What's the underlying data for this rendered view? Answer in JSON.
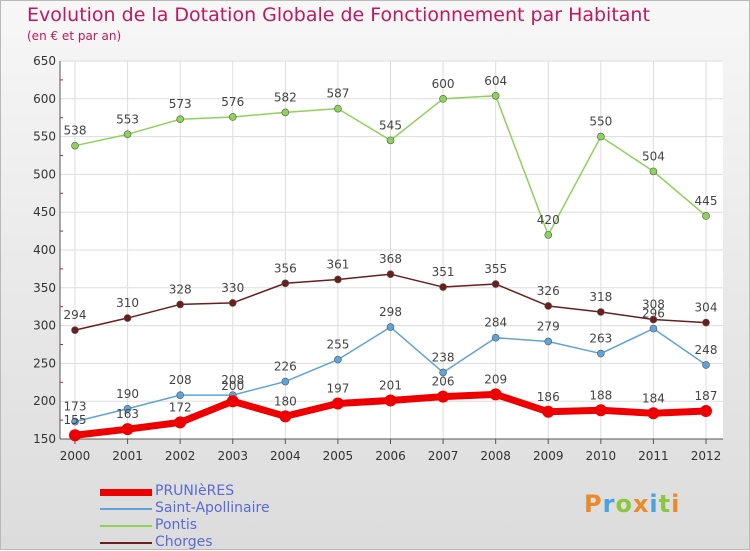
{
  "header": {
    "title": "Evolution de la Dotation Globale de Fonctionnement par Habitant",
    "subtitle": "(en € et par an)"
  },
  "logo": {
    "text": "Proxiti",
    "letters": [
      "P",
      "r",
      "o",
      "x",
      "i",
      "t",
      "i"
    ],
    "colors": [
      "#e98b2a",
      "#4aa3df",
      "#8cc63f",
      "#e98b2a",
      "#4aa3df",
      "#8cc63f",
      "#e98b2a"
    ]
  },
  "chart_data": {
    "type": "line",
    "title": "Evolution de la Dotation Globale de Fonctionnement par Habitant",
    "subtitle": "(en € et par an)",
    "xlabel": "",
    "ylabel": "",
    "categories": [
      "2000",
      "2001",
      "2002",
      "2003",
      "2004",
      "2005",
      "2006",
      "2007",
      "2008",
      "2009",
      "2010",
      "2011",
      "2012"
    ],
    "ylim": [
      150,
      650
    ],
    "yticks": [
      150,
      200,
      250,
      300,
      350,
      400,
      450,
      500,
      550,
      600,
      650
    ],
    "grid": true,
    "legend_position": "bottom-left",
    "series": [
      {
        "name": "Pontis",
        "color": "#8fd25a",
        "values": [
          538,
          553,
          573,
          576,
          582,
          587,
          545,
          600,
          604,
          420,
          550,
          504,
          445
        ]
      },
      {
        "name": "Chorges",
        "color": "#6b1e1e",
        "values": [
          294,
          310,
          328,
          330,
          356,
          361,
          368,
          351,
          355,
          326,
          318,
          308,
          304
        ]
      },
      {
        "name": "Saint-Apollinaire",
        "color": "#5fa3d9",
        "values": [
          173,
          190,
          208,
          208,
          226,
          255,
          298,
          238,
          284,
          279,
          263,
          296,
          248
        ]
      },
      {
        "name": "PRUNIèRES",
        "color": "#ee0000",
        "values": [
          155,
          163,
          172,
          200,
          180,
          197,
          201,
          206,
          209,
          186,
          188,
          184,
          187
        ]
      }
    ],
    "legend_order": [
      "PRUNIèRES",
      "Saint-Apollinaire",
      "Pontis",
      "Chorges"
    ]
  }
}
